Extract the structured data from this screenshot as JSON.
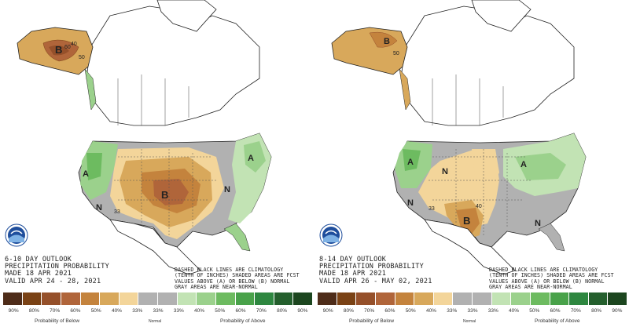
{
  "panels": [
    {
      "id": "six-ten",
      "info": {
        "line1": "6-10 DAY OUTLOOK",
        "line2": "PRECIPITATION PROBABILITY",
        "line3": "MADE   18 APR 2021",
        "line4": "VALID   APR 24 - 28, 2021"
      },
      "map_labels": {
        "b_alaska": "B",
        "b_plains": "B",
        "a_west": "A",
        "a_east": "A",
        "n_west": "N",
        "n_east": "N",
        "c40": "40",
        "c50": "50",
        "c60": "60",
        "c33": "33"
      }
    },
    {
      "id": "eight-fourteen",
      "info": {
        "line1": "8-14 DAY OUTLOOK",
        "line2": "PRECIPITATION PROBABILITY",
        "line3": "MADE   18 APR 2021",
        "line4": "VALID   APR 26 - MAY 02, 2021"
      },
      "map_labels": {
        "b_alaska": "B",
        "b_texas": "B",
        "a_west": "A",
        "a_east": "A",
        "n_plains": "N",
        "n_west": "N",
        "n_southeast": "N",
        "c40": "40",
        "c50": "50",
        "c33": "33"
      }
    }
  ],
  "notes": {
    "line1": "DASHED BLACK LINES ARE CLIMATOLOGY",
    "line2": "(TENTH OF INCHES) SHADED AREAS ARE FCST",
    "line3": "VALUES ABOVE (A) OR BELOW (B) NORMAL",
    "line4": "GRAY AREAS ARE NEAR-NORMAL"
  },
  "legend": {
    "below_title": "Probability of Below",
    "normal_title": "Normal",
    "above_title": "Probability of Above",
    "percents": [
      "90%",
      "80%",
      "70%",
      "60%",
      "50%",
      "40%",
      "33%",
      "33%",
      "33%",
      "40%",
      "50%",
      "60%",
      "70%",
      "80%",
      "90%"
    ],
    "colors": [
      "#4e2c19",
      "#7a4215",
      "#95502a",
      "#b0653a",
      "#c4833d",
      "#d8a85b",
      "#f3d59a",
      "#b1b1b1",
      "#b1b1b1",
      "#c2e3b4",
      "#9bd18c",
      "#6dbb60",
      "#49a24a",
      "#2e8740",
      "#245f2d",
      "#1c461f"
    ]
  },
  "colors": {
    "tan": "#f3d59a",
    "gold": "#d8a85b",
    "brown": "#c4833d",
    "rust": "#b0653a",
    "gray": "#b1b1b1",
    "lightgreen": "#c2e3b4",
    "green": "#9bd18c"
  }
}
